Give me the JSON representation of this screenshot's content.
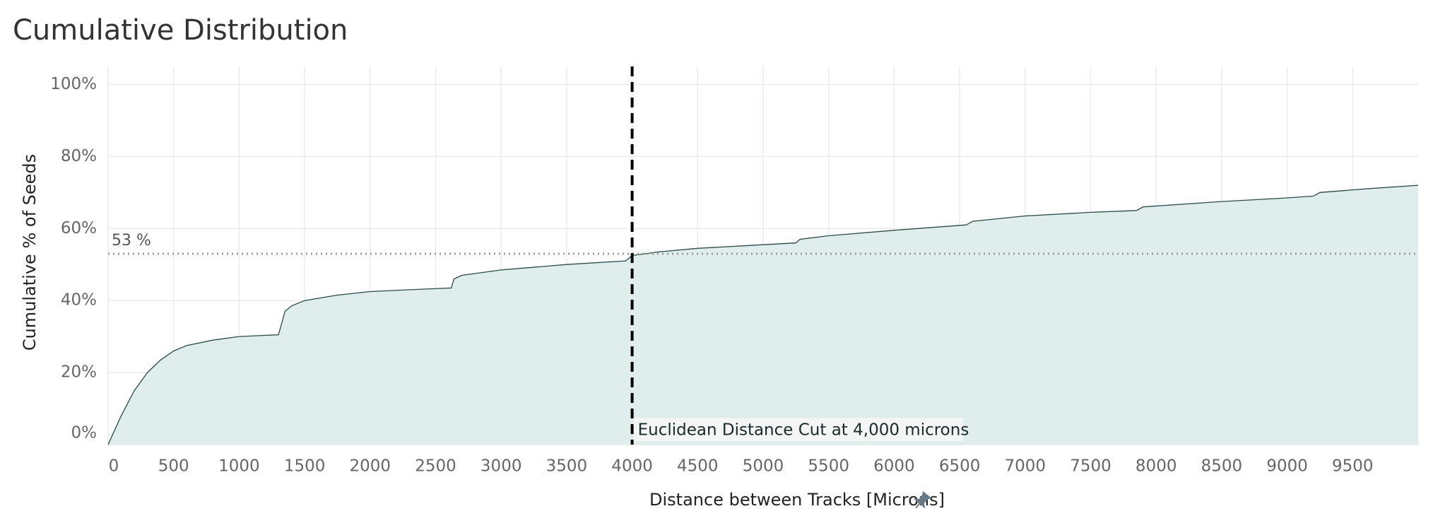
{
  "chart_data": {
    "type": "area",
    "title": "Cumulative Distribution",
    "x_label": "Distance between Tracks [Microns]",
    "y_label": "Cumulative % of Seeds",
    "x": [
      0,
      100,
      200,
      300,
      400,
      500,
      600,
      800,
      1000,
      1300,
      1320,
      1350,
      1400,
      1500,
      1750,
      2000,
      2300,
      2620,
      2640,
      2700,
      3000,
      3500,
      3950,
      4000,
      4200,
      4500,
      5000,
      5250,
      5280,
      5500,
      6000,
      6550,
      6600,
      7000,
      7500,
      7850,
      7900,
      8500,
      9000,
      9200,
      9250,
      9600,
      10000
    ],
    "values": [
      0,
      8,
      15,
      20,
      23.5,
      26,
      27.5,
      29,
      30,
      30.5,
      33,
      37,
      38.5,
      40,
      41.5,
      42.5,
      43,
      43.5,
      46,
      47,
      48.5,
      50,
      51,
      52.5,
      53.5,
      54.5,
      55.5,
      56,
      57,
      58,
      59.5,
      61,
      62,
      63.5,
      64.5,
      65,
      66,
      67.5,
      68.5,
      69,
      70,
      71,
      72
    ],
    "color": "#2c4a47",
    "fill": "#dfeeec",
    "xlim": [
      0,
      10000
    ],
    "ylim": [
      0,
      105
    ],
    "xticks": [
      0,
      500,
      1000,
      1500,
      2000,
      2500,
      3000,
      3500,
      4000,
      4500,
      5000,
      5500,
      6000,
      6500,
      7000,
      7500,
      8000,
      8500,
      9000,
      9500
    ],
    "yticks": [
      {
        "value": 0,
        "label": "0%"
      },
      {
        "value": 20,
        "label": "20%"
      },
      {
        "value": 40,
        "label": "40%"
      },
      {
        "value": 60,
        "label": "60%"
      },
      {
        "value": 80,
        "label": "80%"
      },
      {
        "value": 100,
        "label": "100%"
      }
    ],
    "grid": true,
    "reference_line": {
      "value": 53,
      "label": "53 %"
    },
    "vertical_line": {
      "value": 4000,
      "label": "Euclidean Distance Cut at 4,000 microns"
    }
  }
}
